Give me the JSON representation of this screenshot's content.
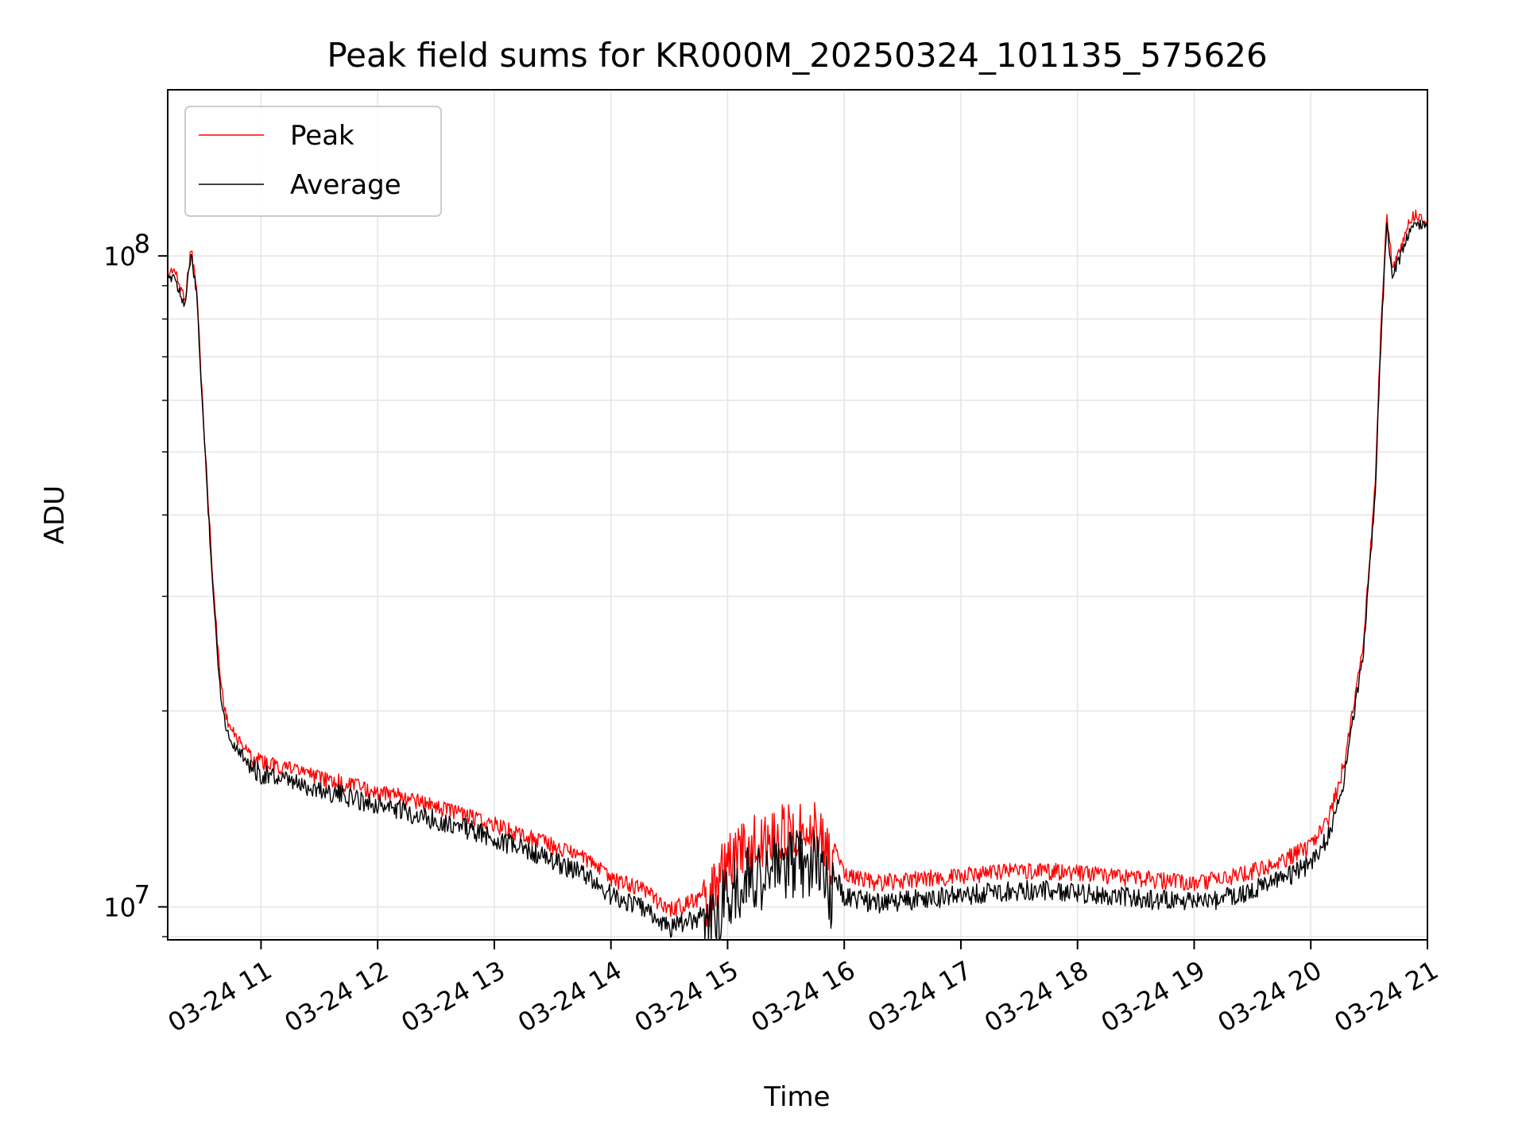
{
  "chart_data": {
    "type": "line",
    "title": "Peak field sums for KR000M_20250324_101135_575626",
    "xlabel": "Time",
    "ylabel": "ADU",
    "yscale": "log",
    "ylim": [
      8900000,
      180000000
    ],
    "xlim": [
      10.2,
      21.0
    ],
    "x_unit": "hour of 2025-03-24",
    "grid": true,
    "legend_position": "top-left",
    "x_ticks": [
      {
        "value": 11,
        "label": "03-24 11"
      },
      {
        "value": 12,
        "label": "03-24 12"
      },
      {
        "value": 13,
        "label": "03-24 13"
      },
      {
        "value": 14,
        "label": "03-24 14"
      },
      {
        "value": 15,
        "label": "03-24 15"
      },
      {
        "value": 16,
        "label": "03-24 16"
      },
      {
        "value": 17,
        "label": "03-24 17"
      },
      {
        "value": 18,
        "label": "03-24 18"
      },
      {
        "value": 19,
        "label": "03-24 19"
      },
      {
        "value": 20,
        "label": "03-24 20"
      },
      {
        "value": 21,
        "label": "03-24 21"
      }
    ],
    "y_ticks": [
      {
        "value": 10000000,
        "base": "10",
        "exp": "7"
      },
      {
        "value": 100000000,
        "base": "10",
        "exp": "8"
      }
    ],
    "series": [
      {
        "name": "Peak",
        "color": "#ff0000",
        "x": [
          10.2,
          10.25,
          10.3,
          10.35,
          10.4,
          10.45,
          10.5,
          10.55,
          10.6,
          10.65,
          10.7,
          10.75,
          10.8,
          10.85,
          10.9,
          10.95,
          11.0,
          11.25,
          11.5,
          11.75,
          12.0,
          12.25,
          12.5,
          12.75,
          13.0,
          13.25,
          13.5,
          13.75,
          14.0,
          14.25,
          14.5,
          14.75,
          15.0,
          15.25,
          15.5,
          15.75,
          16.0,
          16.25,
          16.5,
          16.75,
          17.0,
          17.25,
          17.5,
          17.75,
          18.0,
          18.25,
          18.5,
          18.75,
          19.0,
          19.25,
          19.5,
          19.75,
          20.0,
          20.15,
          20.3,
          20.45,
          20.55,
          20.6,
          20.65,
          20.7,
          20.75,
          20.8,
          20.85,
          20.9,
          20.95,
          21.0
        ],
        "values": [
          95000000,
          98000000,
          92000000,
          88000000,
          105000000,
          90000000,
          60000000,
          42000000,
          30000000,
          23000000,
          20000000,
          19000000,
          18500000,
          18000000,
          17600000,
          17400000,
          17200000,
          16700000,
          16300000,
          15900000,
          15500000,
          15100000,
          14700000,
          14300000,
          13800000,
          13300000,
          12800000,
          12300000,
          11400000,
          11000000,
          10200000,
          10600000,
          13000000,
          14000000,
          14500000,
          14800000,
          11600000,
          11200000,
          11300000,
          11400000,
          11500000,
          11600000,
          11700000,
          11700000,
          11600000,
          11500000,
          11400000,
          11300000,
          11200000,
          11400000,
          11700000,
          12100000,
          12800000,
          14000000,
          17500000,
          26000000,
          45000000,
          78000000,
          118000000,
          98000000,
          103000000,
          108000000,
          116000000,
          118000000,
          117000000,
          115000000
        ]
      },
      {
        "name": "Average",
        "color": "#000000",
        "x": [
          10.2,
          10.25,
          10.3,
          10.35,
          10.4,
          10.45,
          10.5,
          10.55,
          10.6,
          10.65,
          10.7,
          10.75,
          10.8,
          10.85,
          10.9,
          10.95,
          11.0,
          11.25,
          11.5,
          11.75,
          12.0,
          12.25,
          12.5,
          12.75,
          13.0,
          13.25,
          13.5,
          13.75,
          14.0,
          14.25,
          14.5,
          14.75,
          15.0,
          15.25,
          15.5,
          15.75,
          16.0,
          16.25,
          16.5,
          16.75,
          17.0,
          17.25,
          17.5,
          17.75,
          18.0,
          18.25,
          18.5,
          18.75,
          19.0,
          19.25,
          19.5,
          19.75,
          20.0,
          20.15,
          20.3,
          20.45,
          20.55,
          20.6,
          20.65,
          20.7,
          20.75,
          20.8,
          20.85,
          20.9,
          20.95,
          21.0
        ],
        "values": [
          93000000,
          96000000,
          90000000,
          86000000,
          103000000,
          88000000,
          59000000,
          41000000,
          29000000,
          22000000,
          19200000,
          18300000,
          17800000,
          17400000,
          17000000,
          16800000,
          16600000,
          16100000,
          15700000,
          15300000,
          14900000,
          14500000,
          14100000,
          13700000,
          13200000,
          12700000,
          12200000,
          11700000,
          10800000,
          10400000,
          9600000,
          10000000,
          11800000,
          12600000,
          13000000,
          13300000,
          10800000,
          10500000,
          10600000,
          10700000,
          10800000,
          10900000,
          11000000,
          11000000,
          10900000,
          10800000,
          10700000,
          10600000,
          10500000,
          10700000,
          11000000,
          11400000,
          12100000,
          13300000,
          16800000,
          25000000,
          43000000,
          75000000,
          114000000,
          95000000,
          100000000,
          105000000,
          113000000,
          115000000,
          114000000,
          112000000
        ]
      }
    ]
  }
}
